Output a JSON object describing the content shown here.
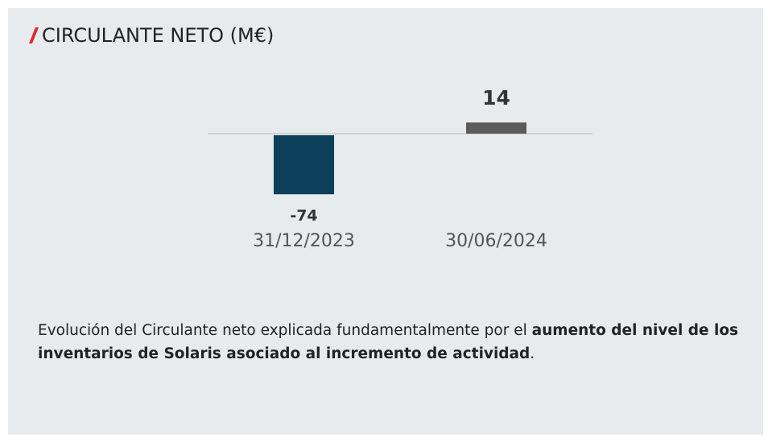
{
  "chart_data": {
    "type": "bar",
    "title": "CIRCULANTE NETO (M€)",
    "categories": [
      "31/12/2023",
      "30/06/2024"
    ],
    "values": [
      -74,
      14
    ],
    "colors": [
      "#0b3f5a",
      "#5b5b5b"
    ]
  },
  "note": {
    "parts": [
      "Evolución del Circulante neto explicada fundamentalmente por el ",
      "aumento del nivel de los inventarios de Solaris asociado al incremento de actividad",
      "."
    ]
  }
}
